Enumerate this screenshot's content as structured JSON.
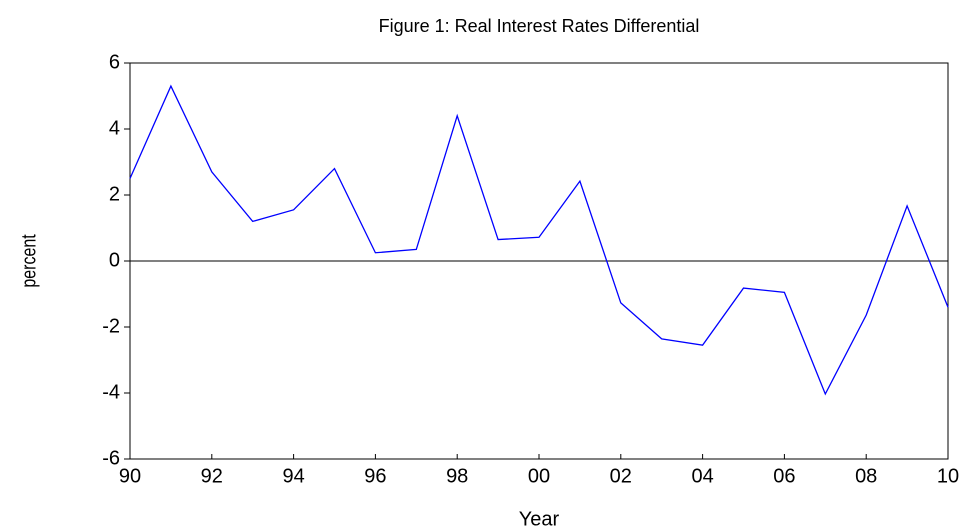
{
  "chart_data": {
    "type": "line",
    "title": "Figure 1: Real Interest Rates Differential",
    "x_label": "Year",
    "y_label": "percent",
    "categories": [
      "90",
      null,
      "92",
      null,
      "94",
      null,
      "96",
      null,
      "98",
      null,
      "00",
      null,
      "02",
      null,
      "04",
      null,
      "06",
      null,
      "08",
      null,
      "10"
    ],
    "series": [
      {
        "name": "Real Interest Rates Differential",
        "color": "#0000ff",
        "values": [
          2.5,
          5.3,
          2.7,
          1.2,
          1.55,
          2.8,
          0.25,
          0.35,
          4.4,
          0.65,
          0.72,
          2.42,
          -1.27,
          -2.36,
          -2.55,
          -0.82,
          -0.95,
          -4.03,
          -1.64,
          1.67,
          -1.4
        ]
      }
    ],
    "ylim": [
      -6,
      6
    ],
    "yticks": [
      -6,
      -4,
      -2,
      0,
      2,
      4,
      6
    ],
    "zero_line": true,
    "grid": false
  }
}
